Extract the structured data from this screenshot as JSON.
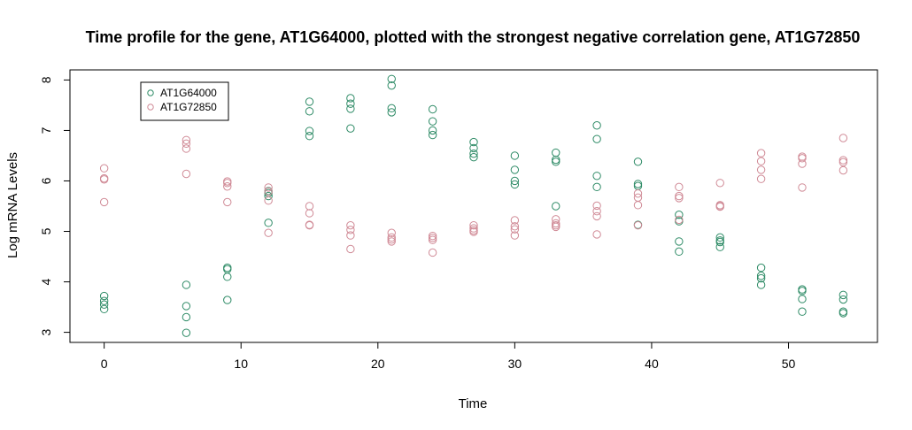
{
  "chart_data": {
    "type": "scatter",
    "title": "Time profile for the gene, AT1G64000, plotted with the strongest negative correlation gene, AT1G72850",
    "xlabel": "Time",
    "ylabel": "Log mRNA Levels",
    "xlim": [
      -2.5,
      56.5
    ],
    "ylim": [
      2.8,
      8.2
    ],
    "xticks": [
      0,
      10,
      20,
      30,
      40,
      50
    ],
    "yticks": [
      3,
      4,
      5,
      6,
      7,
      8
    ],
    "grid": false,
    "legend_position": "top-left",
    "series": [
      {
        "name": "AT1G64000",
        "color": "#2e8b66",
        "marker": "open-circle",
        "points": [
          [
            0,
            3.72
          ],
          [
            0,
            3.62
          ],
          [
            0,
            3.55
          ],
          [
            0,
            3.46
          ],
          [
            6,
            3.94
          ],
          [
            6,
            3.52
          ],
          [
            6,
            3.3
          ],
          [
            6,
            2.99
          ],
          [
            9,
            4.28
          ],
          [
            9,
            4.25
          ],
          [
            9,
            4.1
          ],
          [
            9,
            3.64
          ],
          [
            12,
            5.8
          ],
          [
            12,
            5.76
          ],
          [
            12,
            5.7
          ],
          [
            12,
            5.17
          ],
          [
            15,
            7.57
          ],
          [
            15,
            7.38
          ],
          [
            15,
            6.99
          ],
          [
            15,
            6.89
          ],
          [
            18,
            7.64
          ],
          [
            18,
            7.53
          ],
          [
            18,
            7.43
          ],
          [
            18,
            7.04
          ],
          [
            21,
            8.02
          ],
          [
            21,
            7.89
          ],
          [
            21,
            7.44
          ],
          [
            21,
            7.36
          ],
          [
            24,
            7.42
          ],
          [
            24,
            7.18
          ],
          [
            24,
            7.0
          ],
          [
            24,
            6.91
          ],
          [
            27,
            6.77
          ],
          [
            27,
            6.65
          ],
          [
            27,
            6.54
          ],
          [
            27,
            6.47
          ],
          [
            30,
            6.5
          ],
          [
            30,
            6.22
          ],
          [
            30,
            6.0
          ],
          [
            30,
            5.93
          ],
          [
            33,
            6.56
          ],
          [
            33,
            6.42
          ],
          [
            33,
            6.38
          ],
          [
            33,
            5.5
          ],
          [
            36,
            7.1
          ],
          [
            36,
            6.83
          ],
          [
            36,
            6.1
          ],
          [
            36,
            5.88
          ],
          [
            39,
            6.38
          ],
          [
            39,
            5.94
          ],
          [
            39,
            5.9
          ],
          [
            39,
            5.13
          ],
          [
            42,
            5.33
          ],
          [
            42,
            5.2
          ],
          [
            42,
            4.8
          ],
          [
            42,
            4.6
          ],
          [
            45,
            4.88
          ],
          [
            45,
            4.82
          ],
          [
            45,
            4.79
          ],
          [
            45,
            4.69
          ],
          [
            48,
            4.28
          ],
          [
            48,
            4.12
          ],
          [
            48,
            4.07
          ],
          [
            48,
            3.94
          ],
          [
            51,
            3.85
          ],
          [
            51,
            3.82
          ],
          [
            51,
            3.66
          ],
          [
            51,
            3.41
          ],
          [
            54,
            3.74
          ],
          [
            54,
            3.65
          ],
          [
            54,
            3.41
          ],
          [
            54,
            3.38
          ]
        ]
      },
      {
        "name": "AT1G72850",
        "color": "#d08a96",
        "marker": "open-circle",
        "points": [
          [
            0,
            6.25
          ],
          [
            0,
            6.05
          ],
          [
            0,
            6.03
          ],
          [
            0,
            5.58
          ],
          [
            6,
            6.81
          ],
          [
            6,
            6.74
          ],
          [
            6,
            6.64
          ],
          [
            6,
            6.14
          ],
          [
            9,
            5.99
          ],
          [
            9,
            5.96
          ],
          [
            9,
            5.89
          ],
          [
            9,
            5.58
          ],
          [
            12,
            5.87
          ],
          [
            12,
            5.79
          ],
          [
            12,
            5.61
          ],
          [
            12,
            4.97
          ],
          [
            15,
            5.5
          ],
          [
            15,
            5.36
          ],
          [
            15,
            5.13
          ],
          [
            15,
            5.12
          ],
          [
            18,
            5.12
          ],
          [
            18,
            5.03
          ],
          [
            18,
            4.92
          ],
          [
            18,
            4.65
          ],
          [
            21,
            4.97
          ],
          [
            21,
            4.88
          ],
          [
            21,
            4.84
          ],
          [
            21,
            4.8
          ],
          [
            24,
            4.91
          ],
          [
            24,
            4.87
          ],
          [
            24,
            4.83
          ],
          [
            24,
            4.58
          ],
          [
            27,
            5.12
          ],
          [
            27,
            5.06
          ],
          [
            27,
            5.02
          ],
          [
            27,
            4.99
          ],
          [
            30,
            5.22
          ],
          [
            30,
            5.1
          ],
          [
            30,
            5.04
          ],
          [
            30,
            4.92
          ],
          [
            33,
            5.24
          ],
          [
            33,
            5.16
          ],
          [
            33,
            5.12
          ],
          [
            33,
            5.09
          ],
          [
            36,
            5.51
          ],
          [
            36,
            5.4
          ],
          [
            36,
            5.3
          ],
          [
            36,
            4.94
          ],
          [
            39,
            5.75
          ],
          [
            39,
            5.67
          ],
          [
            39,
            5.52
          ],
          [
            39,
            5.12
          ],
          [
            42,
            5.88
          ],
          [
            42,
            5.7
          ],
          [
            42,
            5.66
          ],
          [
            42,
            5.23
          ],
          [
            45,
            5.96
          ],
          [
            45,
            5.52
          ],
          [
            45,
            5.5
          ],
          [
            45,
            5.49
          ],
          [
            48,
            6.55
          ],
          [
            48,
            6.39
          ],
          [
            48,
            6.22
          ],
          [
            48,
            6.04
          ],
          [
            51,
            6.48
          ],
          [
            51,
            6.45
          ],
          [
            51,
            6.34
          ],
          [
            51,
            5.87
          ],
          [
            54,
            6.85
          ],
          [
            54,
            6.41
          ],
          [
            54,
            6.37
          ],
          [
            54,
            6.21
          ]
        ]
      }
    ]
  }
}
